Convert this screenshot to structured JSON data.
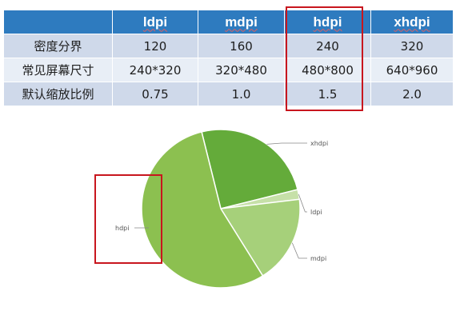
{
  "table": {
    "headers": [
      "",
      "ldpi",
      "mdpi",
      "hdpi",
      "xhdpi"
    ],
    "rows": [
      {
        "label": "密度分界",
        "cells": [
          "120",
          "160",
          "240",
          "320"
        ]
      },
      {
        "label": "常见屏幕尺寸",
        "cells": [
          "240*320",
          "320*480",
          "480*800",
          "640*960"
        ]
      },
      {
        "label": "默认缩放比例",
        "cells": [
          "0.75",
          "1.0",
          "1.5",
          "2.0"
        ]
      }
    ],
    "highlighted_column": "hdpi"
  },
  "chart_data": {
    "type": "pie",
    "slices": [
      {
        "label": "xhdpi",
        "value": 25,
        "color": "#64ab3a"
      },
      {
        "label": "ldpi",
        "value": 2,
        "color": "#c6e0a8"
      },
      {
        "label": "mdpi",
        "value": 18,
        "color": "#a6d07a"
      },
      {
        "label": "hdpi",
        "value": 55,
        "color": "#8cc050"
      }
    ],
    "highlighted_slice": "hdpi"
  },
  "colors": {
    "header_bg": "#2e7bbf",
    "row_odd": "#cfd9ea",
    "row_even": "#e8eef6",
    "highlight": "#c8161e"
  }
}
